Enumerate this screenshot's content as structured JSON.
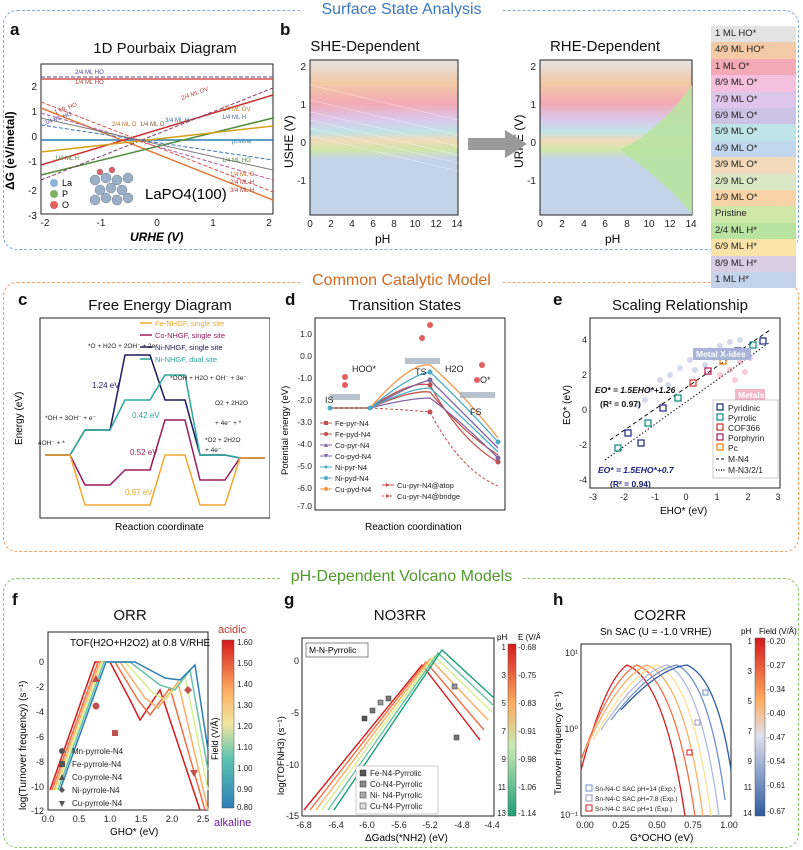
{
  "sections": {
    "top": "Surface State Analysis",
    "mid": "Common Catalytic Model",
    "bot": "pH-Dependent Volcano Models"
  },
  "panels": {
    "a": {
      "label": "a",
      "title": "1D Pourbaix Diagram",
      "ylabel": "ΔG (eV/metal)",
      "xlabel": "URHE (V)",
      "material": "LaPO4(100)",
      "yticks": [
        "-3",
        "-2",
        "-1",
        "0",
        "1",
        "2"
      ],
      "xticks": [
        "-2",
        "-1",
        "0",
        "1",
        "2"
      ],
      "legend": [
        "La",
        "P",
        "O"
      ],
      "line_labels": [
        "2/4 ML HO",
        "1/4 ML HO",
        "1 ML HO",
        "3/4 ML HO",
        "2/4 ML O",
        "1/4 ML O",
        "3/4 ML H",
        "2/4 ML OV",
        "1/4 ML OV",
        "1/4 ML H",
        "pristine",
        "1/4 ML HO",
        "1/4 ML H",
        "1/4 ML O",
        "2/4 ML H",
        "3/4 ML H"
      ]
    },
    "b": {
      "label": "b",
      "title_left": "SHE-Dependent",
      "title_right": "RHE-Dependent",
      "ylabel_left": "USHE (V)",
      "ylabel_right": "URHE (V)",
      "xlabel": "pH",
      "yticks": [
        "-1",
        "0",
        "1",
        "2"
      ],
      "xticks": [
        "0",
        "2",
        "4",
        "6",
        "8",
        "10",
        "12",
        "14"
      ],
      "legend": [
        {
          "label": "1 ML HO*",
          "color": "#e3e3e3"
        },
        {
          "label": "4/9 ML HO*",
          "color": "#f3c9a6"
        },
        {
          "label": "1 ML O*",
          "color": "#f3aab5"
        },
        {
          "label": "8/9 ML O*",
          "color": "#f5c0de"
        },
        {
          "label": "7/9 ML O*",
          "color": "#dcc6ea"
        },
        {
          "label": "6/9 ML O*",
          "color": "#ccc2e4"
        },
        {
          "label": "5/9 ML O*",
          "color": "#bfe4e6"
        },
        {
          "label": "4/9 ML O*",
          "color": "#c2d7ee"
        },
        {
          "label": "3/9 ML O*",
          "color": "#f2d9b9"
        },
        {
          "label": "2/9 ML O*",
          "color": "#d9e7c4"
        },
        {
          "label": "1/9 ML O*",
          "color": "#f7d3a7"
        },
        {
          "label": "Pristine",
          "color": "#cfe8a9"
        },
        {
          "label": "2/4 ML H*",
          "color": "#b8e3a0"
        },
        {
          "label": "6/9 ML H*",
          "color": "#f9e3a8"
        },
        {
          "label": "8/9 ML H*",
          "color": "#d9cce3"
        },
        {
          "label": "1 ML H*",
          "color": "#c3d3e8"
        }
      ]
    },
    "c": {
      "label": "c",
      "title": "Free Energy Diagram",
      "ylabel": "Energy (eV)",
      "xlabel": "Reaction coordinate",
      "legend": [
        {
          "label": "Fe-NHGF, single site",
          "color": "#f0a830"
        },
        {
          "label": "Co-NHGF, single site",
          "color": "#9c1a5c"
        },
        {
          "label": "Ni-NHGF, single site",
          "color": "#1a1a5c"
        },
        {
          "label": "Ni-NHGF, dual site",
          "color": "#2aa79b"
        }
      ],
      "annotations": [
        "*O + H2O + 2OH⁻ + 2e⁻",
        "*OOH + H2O + OH⁻ + 3e⁻",
        "*OH + 3OH⁻ + e⁻",
        "4OH⁻ + *",
        "O2 + 2H2O",
        "+ 4e⁻ + *",
        "*O2 + 2H2O",
        "+ 4e⁻",
        "1.24 eV",
        "0.42 eV",
        "0.52 eV",
        "0.97 eV"
      ]
    },
    "d": {
      "label": "d",
      "title": "Transition States",
      "ylabel": "Potential energy (eV)",
      "xlabel": "Reaction coordination",
      "yticks": [
        "1.0",
        "0.0",
        "-1.0",
        "-2.0",
        "-3.0",
        "-4.0",
        "-5.0",
        "-6.0",
        "-7.0"
      ],
      "species": [
        "HOO*",
        "IS",
        "TS",
        "H2O",
        "O*",
        "FS"
      ],
      "legend": [
        {
          "label": "Fe-pyr-N4",
          "color": "#c0504d"
        },
        {
          "label": "Fe-pyd-N4",
          "color": "#c0504d"
        },
        {
          "label": "Co-pyr-N4",
          "color": "#8064a2"
        },
        {
          "label": "Co-pyd-N4",
          "color": "#8064a2"
        },
        {
          "label": "Ni-pyr-N4",
          "color": "#4bacc6"
        },
        {
          "label": "Ni-pyd-N4",
          "color": "#4bacc6"
        },
        {
          "label": "Cu-pyd-N4",
          "color": "#f79646"
        },
        {
          "label": "Cu-pyr-N4@atop",
          "color": "#c0504d"
        },
        {
          "label": "Cu-pyr-N4@bridge",
          "color": "#c0504d"
        }
      ]
    },
    "e": {
      "label": "e",
      "title": "Scaling Relationship",
      "ylabel": "EO* (eV)",
      "xlabel": "EHO* (eV)",
      "xticks": [
        "-3",
        "-2",
        "-1",
        "0",
        "1",
        "2",
        "3"
      ],
      "yticks": [
        "-4",
        "-2",
        "0",
        "2",
        "4"
      ],
      "group_labels": [
        "Metal X-ides",
        "Metals"
      ],
      "eq1": "EO* = 1.5EHO*+1.26",
      "r1": "(R² = 0.97)",
      "eq2": "EO* = 1.5EHO*+0.7",
      "r2": "(R² = 0.94)",
      "legend": [
        {
          "label": "Pyridinic",
          "color": "#1a237e"
        },
        {
          "label": "Pyrrolic",
          "color": "#00897b"
        },
        {
          "label": "COF366",
          "color": "#d32f2f"
        },
        {
          "label": "Porphyrin",
          "color": "#ad1457"
        },
        {
          "label": "Pc",
          "color": "#f57c00"
        },
        {
          "label": "M-N4",
          "color": "#111111"
        },
        {
          "label": "M-N3/2/1",
          "color": "#111111"
        }
      ]
    },
    "f": {
      "label": "f",
      "title": "ORR",
      "annotation": "TOF(H2O+H2O2) at 0.8 V/RHE",
      "ylabel": "log(Turnover frequency) (s⁻¹)",
      "xlabel": "GHO* (eV)",
      "xticks": [
        "0.0",
        "0.5",
        "1.0",
        "1.5",
        "2.0",
        "2.5"
      ],
      "yticks": [
        "0",
        "-2",
        "-4",
        "-6",
        "-8",
        "-10",
        "-12"
      ],
      "colorbar_label": "Field (V/Å)",
      "colorbar_top": "acidic",
      "colorbar_bottom": "alkaline",
      "colorbar_ticks": [
        "1.60",
        "1.50",
        "1.40",
        "1.30",
        "1.20",
        "1.10",
        "1.00",
        "0.90",
        "0.80"
      ],
      "legend": [
        "Mn-pyrrole-N4",
        "Fe-pyrrole-N4",
        "Co-pyrrole-N4",
        "Ni-pyrrole-N4",
        "Cu-pyrrole-N4"
      ]
    },
    "g": {
      "label": "g",
      "title": "NO3RR",
      "box_label": "M-N-Pyrrolic",
      "ylabel": "log(TOFNH3) (s⁻¹)",
      "xlabel": "ΔGads(*NH2) (eV)",
      "xticks": [
        "-6.8",
        "-6.4",
        "-6.0",
        "-5.6",
        "-5.2",
        "-4.8",
        "-4.4"
      ],
      "yticks": [
        "0",
        "-5",
        "-10",
        "-15"
      ],
      "colorbar_left": [
        "1",
        "3",
        "5",
        "7",
        "9",
        "11",
        "13"
      ],
      "colorbar_left_title": "pH",
      "colorbar_right_title": "E (V/Å)",
      "colorbar_right": [
        "-0.68",
        "-0.75",
        "-0.83",
        "-0.91",
        "-0.98",
        "-1.06",
        "-1.14"
      ],
      "legend": [
        "Fe-N4-Pyrrolic",
        "Co-N4-Pyrrolic",
        "Ni- N4-Pyrrolic",
        "Cu-N4-Pyrrolic"
      ]
    },
    "h": {
      "label": "h",
      "title": "CO2RR",
      "subtitle": "Sn SAC (U = -1.0 VRHE)",
      "ylabel": "Turnover frequency (s⁻¹)",
      "xlabel": "G*OCHO (eV)",
      "xticks": [
        "0.00",
        "0.25",
        "0.50",
        "0.75",
        "1.00"
      ],
      "yticks": [
        "10¹",
        "10⁰",
        "10⁻¹"
      ],
      "colorbar_left_title": "pH",
      "colorbar_right_title": "Field (V/Å)",
      "colorbar_left": [
        "1",
        "3",
        "5",
        "7",
        "9",
        "11",
        "14"
      ],
      "colorbar_right": [
        "-0.20",
        "-0.27",
        "-0.34",
        "-0.40",
        "-0.47",
        "-0.54",
        "-0.61",
        "-0.67"
      ],
      "legend": [
        "Sn-N4-C SAC pH=14 (Exp.)",
        "Sn-N4-C SAC pH=7.8 (Exp.)",
        "Sn-N4-C SAC pH=1 (Exp.)"
      ]
    }
  }
}
